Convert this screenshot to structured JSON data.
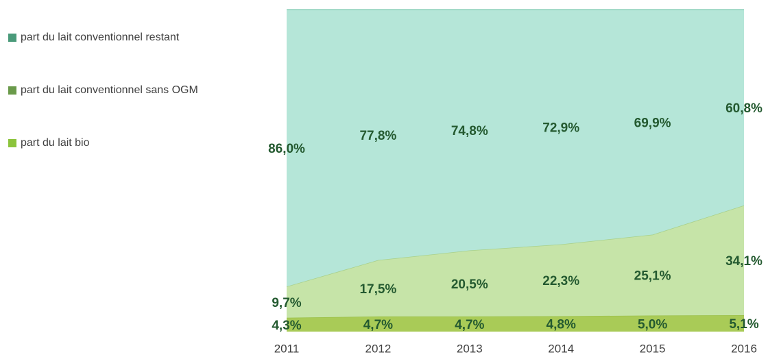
{
  "chart_data": {
    "type": "area",
    "stacked": true,
    "categories": [
      "2011",
      "2012",
      "2013",
      "2014",
      "2015",
      "2016"
    ],
    "ylim": [
      0,
      100
    ],
    "series": [
      {
        "name": "part du lait bio",
        "color": "#a9cb57",
        "edge": "#9cc04a",
        "legend_color": "#8cc43c",
        "values": [
          4.3,
          4.7,
          4.7,
          4.8,
          5.0,
          5.1
        ],
        "value_labels": [
          "4,3%",
          "4,7%",
          "4,7%",
          "4,8%",
          "5,0%",
          "5,1%"
        ]
      },
      {
        "name": "part du lait conventionnel sans OGM",
        "color": "#c6e4a8",
        "edge": "#a8d08a",
        "legend_color": "#6a9a4a",
        "values": [
          9.7,
          17.5,
          20.5,
          22.3,
          25.1,
          34.1
        ],
        "value_labels": [
          "9,7%",
          "17,5%",
          "20,5%",
          "22,3%",
          "25,1%",
          "34,1%"
        ]
      },
      {
        "name": "part du lait conventionnel restant",
        "color": "#b5e6d8",
        "edge": "#8fd0bc",
        "legend_color": "#4a9a7a",
        "values": [
          86.0,
          77.8,
          74.8,
          72.9,
          69.9,
          60.8
        ],
        "value_labels": [
          "86,0%",
          "77,8%",
          "74,8%",
          "72,9%",
          "69,9%",
          "60,8%"
        ]
      }
    ]
  }
}
